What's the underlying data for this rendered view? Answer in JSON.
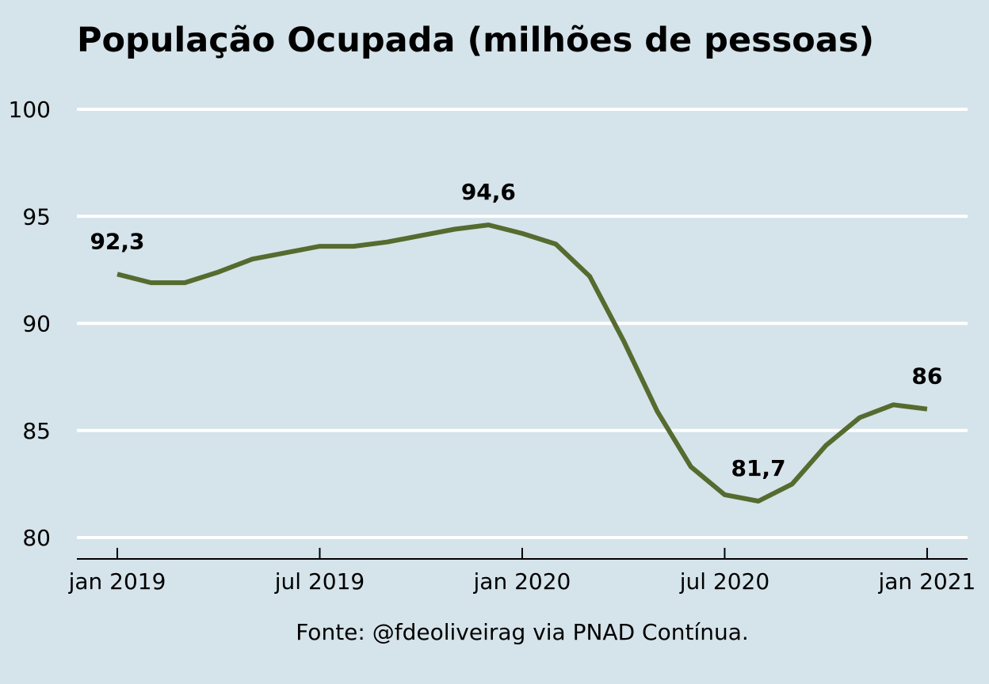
{
  "chart_data": {
    "type": "line",
    "title": "População Ocupada (milhões de pessoas)",
    "source": "Fonte: @fdeoliveirag via PNAD Contínua.",
    "xlabel": "",
    "ylabel": "",
    "ylim": [
      79,
      101.5
    ],
    "yticks": [
      80,
      85,
      90,
      95,
      100
    ],
    "xticks": [
      {
        "date": "2019-01",
        "label": "jan 2019"
      },
      {
        "date": "2019-07",
        "label": "jul 2019"
      },
      {
        "date": "2020-01",
        "label": "jan 2020"
      },
      {
        "date": "2020-07",
        "label": "jul 2020"
      },
      {
        "date": "2021-01",
        "label": "jan 2021"
      }
    ],
    "grid": "horizontal",
    "colors": {
      "background": "#d5e3ea",
      "line": "#556b2f",
      "grid": "#ffffff",
      "axis": "#000000"
    },
    "series": [
      {
        "x": [
          "2019-01",
          "2019-02",
          "2019-03",
          "2019-04",
          "2019-05",
          "2019-06",
          "2019-07",
          "2019-08",
          "2019-09",
          "2019-10",
          "2019-11",
          "2019-12",
          "2020-01",
          "2020-02",
          "2020-03",
          "2020-04",
          "2020-05",
          "2020-06",
          "2020-07",
          "2020-08",
          "2020-09",
          "2020-10",
          "2020-11",
          "2020-12",
          "2021-01"
        ],
        "values": [
          92.3,
          91.9,
          91.9,
          92.4,
          93.0,
          93.3,
          93.6,
          93.6,
          93.8,
          94.1,
          94.4,
          94.6,
          94.2,
          93.7,
          92.2,
          89.2,
          85.9,
          83.3,
          82.0,
          81.7,
          82.5,
          84.3,
          85.6,
          86.2,
          86.0
        ]
      }
    ],
    "annotations": [
      {
        "date": "2019-01",
        "value": 92.3,
        "text": "92,3"
      },
      {
        "date": "2019-12",
        "value": 94.6,
        "text": "94,6"
      },
      {
        "date": "2020-08",
        "value": 81.7,
        "text": "81,7"
      },
      {
        "date": "2021-01",
        "value": 86.0,
        "text": "86"
      }
    ]
  }
}
